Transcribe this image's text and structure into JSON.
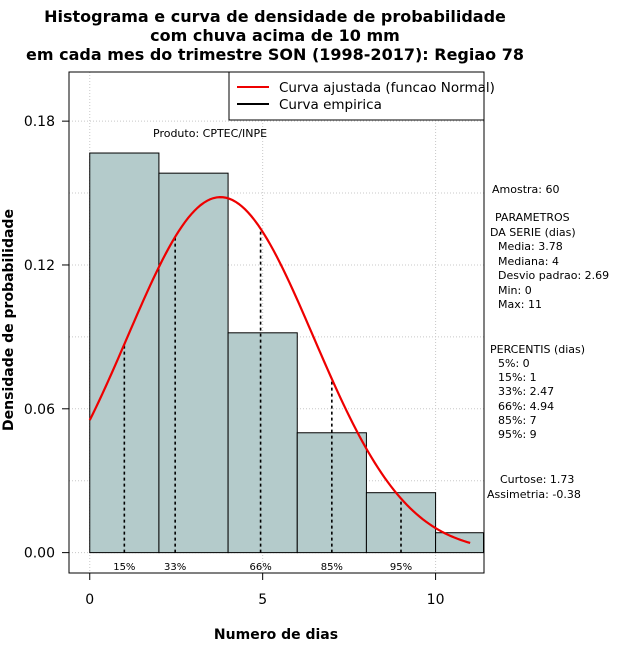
{
  "chart_data": {
    "type": "bar",
    "title": [
      "Histograma e curva de densidade de probabilidade",
      "com chuva acima de 10 mm",
      "em cada mes do trimestre SON (1998-2017): Regiao 78"
    ],
    "xlabel": "Numero de dias",
    "ylabel": "Densidade de probabilidade",
    "xlim": [
      -0.6,
      11.4
    ],
    "ylim": [
      -0.0085,
      0.2005
    ],
    "x_ticks": [
      0,
      5,
      10
    ],
    "y_ticks": [
      0.0,
      0.06,
      0.12,
      0.18
    ],
    "y_tick_labels": [
      "0.00",
      "0.06",
      "0.12",
      "0.18"
    ],
    "bins": [
      {
        "start": 0,
        "end": 2,
        "density": 0.1667
      },
      {
        "start": 2,
        "end": 4,
        "density": 0.1583
      },
      {
        "start": 4,
        "end": 6,
        "density": 0.0917
      },
      {
        "start": 6,
        "end": 8,
        "density": 0.05
      },
      {
        "start": 8,
        "end": 10,
        "density": 0.025
      },
      {
        "start": 10,
        "end": 12,
        "density": 0.0083
      }
    ],
    "bar_color": "#b4cbcb",
    "fitted_curve": {
      "name": "Curva ajustada (funcao Normal)",
      "distribution": "normal",
      "mean": 3.78,
      "sd": 2.69,
      "x_range": [
        0,
        11
      ],
      "color": "#ee0000"
    },
    "empirical_curve": {
      "name": "Curva empirica",
      "color": "#000000"
    },
    "percentiles": [
      {
        "label": "15%",
        "x": 1
      },
      {
        "label": "33%",
        "x": 2.47
      },
      {
        "label": "66%",
        "x": 4.94
      },
      {
        "label": "85%",
        "x": 7
      },
      {
        "label": "95%",
        "x": 9
      }
    ],
    "legend": {
      "position": "top-right",
      "entries": [
        "Curva ajustada (funcao Normal)",
        "Curva empirica"
      ]
    },
    "annotation": "Produto: CPTEC/INPE"
  },
  "side_panel": {
    "sample": "Amostra: 60",
    "params_title": [
      "PARAMETROS",
      "DA SERIE (dias)"
    ],
    "params": [
      "Media: 3.78",
      "Mediana: 4",
      "Desvio padrao: 2.69",
      "Min: 0",
      "Max: 11"
    ],
    "percentis_title": "PERCENTIS (dias)",
    "percentis": [
      "5%: 0",
      "15%: 1",
      "33%: 2.47",
      "66%: 4.94",
      "85%: 7",
      "95%: 9"
    ],
    "kurtosis": "Curtose: 1.73",
    "skewness": "Assimetria: -0.38"
  }
}
